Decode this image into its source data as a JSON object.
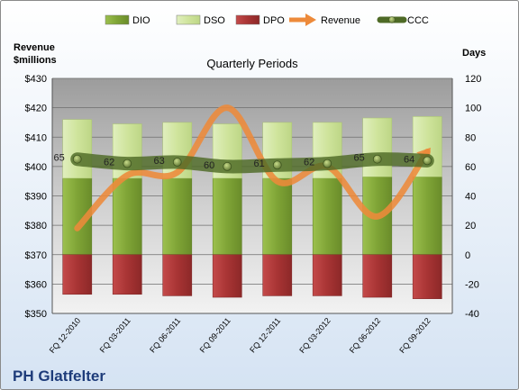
{
  "chart_data": {
    "type": "bar",
    "title": "Quarterly Periods",
    "company": "PH Glatfelter",
    "left_axis_label": [
      "Revenue",
      "$millions"
    ],
    "right_axis_label": "Days",
    "categories": [
      "FQ 12-2010",
      "FQ 03-2011",
      "FQ 06-2011",
      "FQ 09-2011",
      "FQ 12-2011",
      "FQ 03-2012",
      "FQ 06-2012",
      "FQ 09-2012"
    ],
    "left_ylim": [
      350,
      430
    ],
    "left_ticks": [
      350,
      360,
      370,
      380,
      390,
      400,
      410,
      420,
      430
    ],
    "left_tick_labels": [
      "$350",
      "$360",
      "$370",
      "$380",
      "$390",
      "$400",
      "$410",
      "$420",
      "$430"
    ],
    "right_ylim": [
      -40,
      120
    ],
    "right_ticks": [
      -40,
      -20,
      0,
      20,
      40,
      60,
      80,
      100,
      120
    ],
    "right_tick_labels": [
      "-40",
      "-20",
      "0",
      "20",
      "40",
      "60",
      "80",
      "100",
      "120"
    ],
    "grid": true,
    "legend_position": "top",
    "series": [
      {
        "name": "DIO",
        "kind": "stacked-bar",
        "axis": "right",
        "color": "#8cb043",
        "values": [
          52,
          52,
          52,
          52,
          52,
          52,
          53,
          53
        ]
      },
      {
        "name": "DSO",
        "kind": "stacked-bar",
        "axis": "right",
        "color": "#d4e8a8",
        "values": [
          40,
          37,
          38,
          37,
          38,
          38,
          40,
          41
        ]
      },
      {
        "name": "DPO",
        "kind": "negative-bar",
        "axis": "right",
        "color": "#b03a3a",
        "values": [
          -27,
          -27,
          -28,
          -29,
          -28,
          -28,
          -29,
          -30
        ]
      },
      {
        "name": "Revenue",
        "kind": "line",
        "axis": "left",
        "color": "#ed8a3a",
        "values": [
          379,
          397,
          398,
          420,
          395,
          400,
          383,
          405
        ]
      },
      {
        "name": "CCC",
        "kind": "line",
        "axis": "right",
        "color": "#5c7330",
        "values": [
          65,
          62,
          63,
          60,
          61,
          62,
          65,
          64
        ],
        "labels": [
          "65",
          "62",
          "63",
          "60",
          "61",
          "62",
          "65",
          "64"
        ]
      }
    ]
  }
}
